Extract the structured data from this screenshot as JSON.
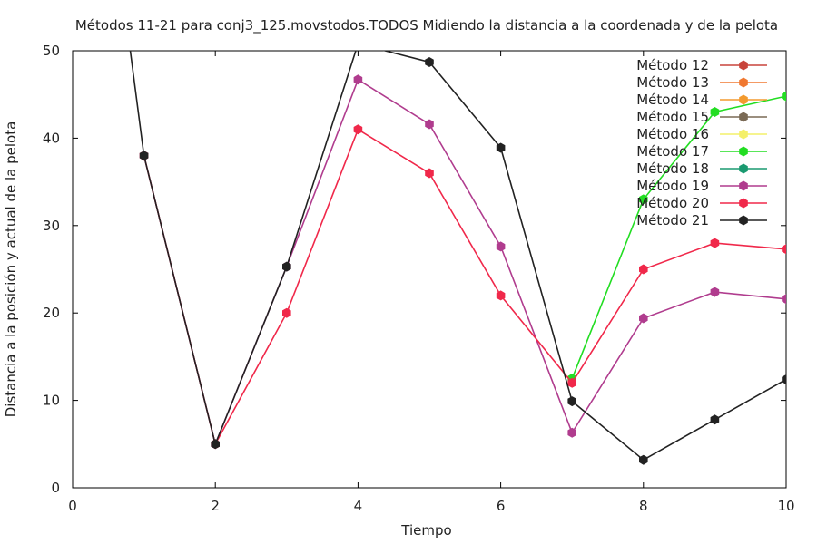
{
  "chart_data": {
    "type": "line",
    "title": "Métodos 11-21 para conj3_125.movstodos.TODOS Midiendo la distancia a la coordenada y de la pelota",
    "xlabel": "Tiempo",
    "ylabel": "Distancia a la posición y actual de la pelota",
    "xlim": [
      0,
      10
    ],
    "ylim": [
      0,
      50
    ],
    "xticks": [
      0,
      2,
      4,
      6,
      8,
      10
    ],
    "yticks": [
      0,
      10,
      20,
      30,
      40,
      50
    ],
    "grid": false,
    "legend_position": "top-right",
    "series": [
      {
        "name": "Método 12",
        "color": "#c8443b",
        "x": [],
        "y": []
      },
      {
        "name": "Método 13",
        "color": "#f07830",
        "x": [],
        "y": []
      },
      {
        "name": "Método 14",
        "color": "#f39a2e",
        "x": [],
        "y": []
      },
      {
        "name": "Método 15",
        "color": "#7a6a55",
        "x": [],
        "y": []
      },
      {
        "name": "Método 16",
        "color": "#f4f06a",
        "x": [],
        "y": []
      },
      {
        "name": "Método 17",
        "color": "#22dd22",
        "x": [
          7,
          8,
          9,
          10
        ],
        "y": [
          12.5,
          33.0,
          43.0,
          44.8
        ]
      },
      {
        "name": "Método 18",
        "color": "#1a9a70",
        "x": [],
        "y": []
      },
      {
        "name": "Método 19",
        "color": "#b03c8e",
        "x": [
          1,
          2,
          3,
          4,
          5,
          6,
          7,
          8,
          9,
          10
        ],
        "y": [
          38.0,
          5.0,
          25.3,
          46.7,
          41.6,
          27.6,
          6.3,
          19.4,
          22.4,
          21.6
        ]
      },
      {
        "name": "Método 20",
        "color": "#f0284a",
        "x": [
          1,
          2,
          3,
          4,
          5,
          6,
          7,
          8,
          9,
          10
        ],
        "y": [
          38.0,
          5.0,
          20.0,
          41.0,
          36.0,
          22.0,
          12.0,
          25.0,
          28.0,
          27.3
        ]
      },
      {
        "name": "Método 21",
        "color": "#222222",
        "x": [
          0.8,
          1,
          2,
          3,
          4,
          5,
          6,
          7,
          8,
          9,
          10
        ],
        "y": [
          50.5,
          38.0,
          5.0,
          25.3,
          50.8,
          48.7,
          38.9,
          9.9,
          3.2,
          7.8,
          12.4
        ]
      }
    ]
  }
}
